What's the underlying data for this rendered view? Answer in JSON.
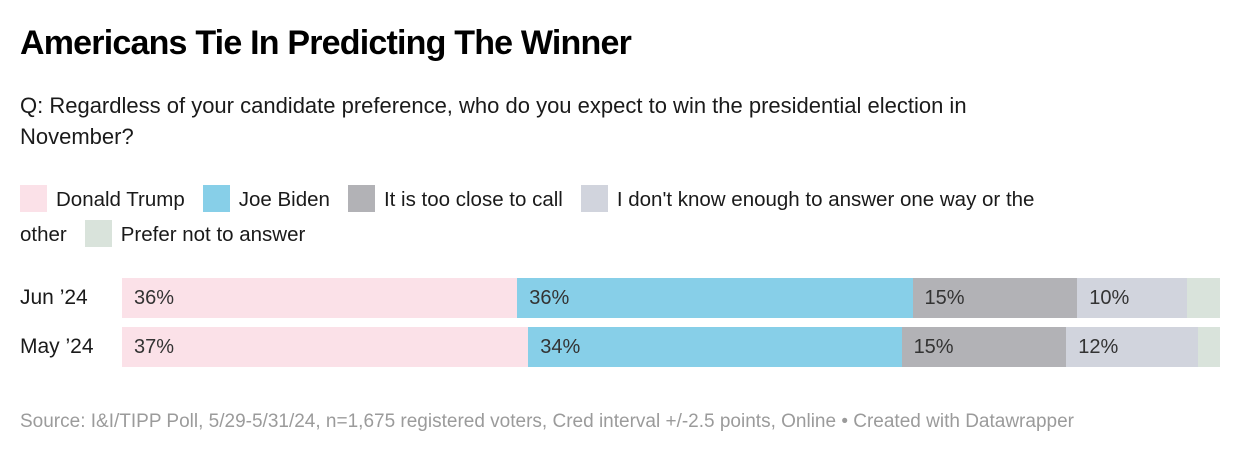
{
  "header": {
    "title": "Americans Tie In Predicting The Winner",
    "subtitle": "Q: Regardless of your candidate preference, who do you expect to win the presidential election in November?"
  },
  "chart_data": {
    "type": "bar",
    "variant": "stacked-horizontal",
    "unit": "%",
    "xlim": [
      0,
      100
    ],
    "grid": false,
    "legend_position": "top",
    "categories": [
      "Jun ’24",
      "May ’24"
    ],
    "series": [
      {
        "name": "Donald Trump",
        "color": "#fbe1e8",
        "values": [
          36,
          37
        ],
        "labels": [
          "36%",
          "37%"
        ]
      },
      {
        "name": "Joe Biden",
        "color": "#87cfe8",
        "values": [
          36,
          34
        ],
        "labels": [
          "36%",
          "34%"
        ]
      },
      {
        "name": "It is too close to call",
        "color": "#b2b2b6",
        "values": [
          15,
          15
        ],
        "labels": [
          "15%",
          "15%"
        ]
      },
      {
        "name": "I don't know enough to answer one way or the other",
        "color": "#d1d4dd",
        "values": [
          10,
          12
        ],
        "labels": [
          "10%",
          "12%"
        ]
      },
      {
        "name": "Prefer not to answer",
        "color": "#d9e3db",
        "values": [
          3,
          2
        ],
        "labels": [
          null,
          null
        ]
      }
    ]
  },
  "footer": {
    "source": "Source: I&I/TIPP Poll, 5/29-5/31/24, n=1,675 registered voters, Cred interval +/-2.5 points, Online • Created with Datawrapper"
  }
}
